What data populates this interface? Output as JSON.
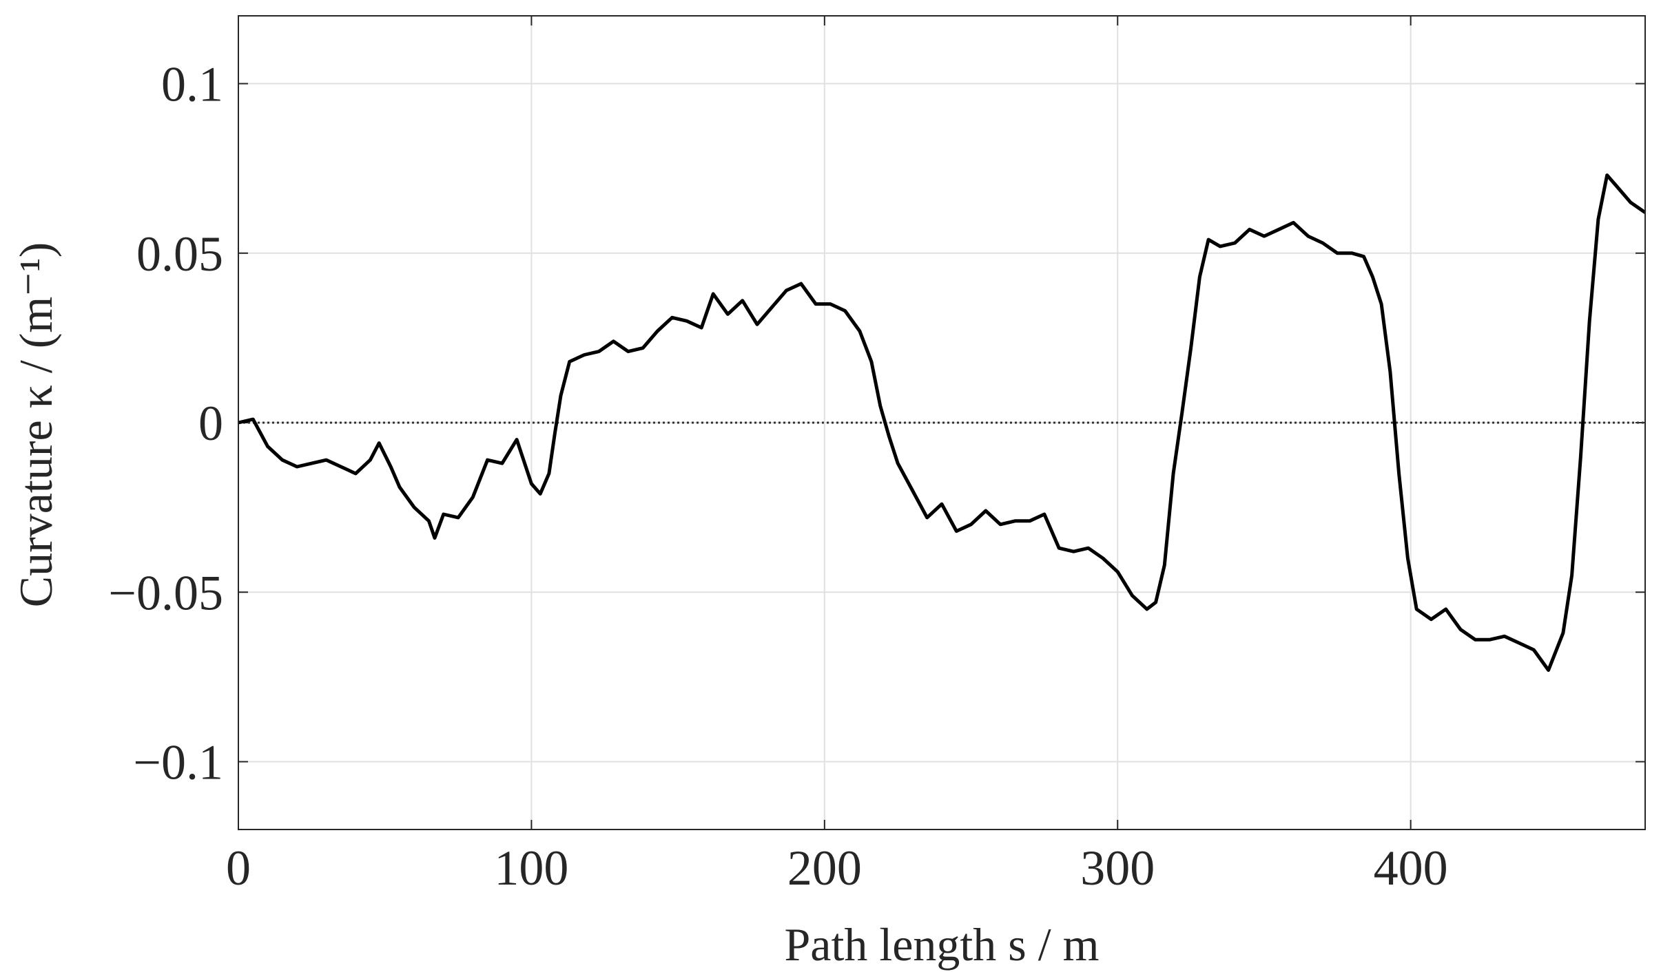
{
  "chart_data": {
    "type": "line",
    "xlabel": "Path length s / m",
    "ylabel": "Curvature κ / (m⁻¹)",
    "x": [
      0,
      5,
      10,
      15,
      20,
      25,
      30,
      35,
      40,
      45,
      48,
      52,
      55,
      60,
      65,
      67,
      70,
      75,
      80,
      85,
      90,
      95,
      100,
      103,
      106,
      108,
      110,
      113,
      118,
      123,
      128,
      133,
      138,
      143,
      148,
      153,
      158,
      162,
      167,
      172,
      177,
      182,
      187,
      192,
      197,
      202,
      207,
      212,
      216,
      219,
      222,
      225,
      230,
      235,
      240,
      245,
      250,
      255,
      260,
      265,
      270,
      275,
      280,
      285,
      290,
      295,
      300,
      305,
      310,
      313,
      316,
      319,
      322,
      325,
      328,
      331,
      335,
      340,
      345,
      350,
      355,
      360,
      365,
      370,
      375,
      380,
      384,
      387,
      390,
      393,
      396,
      399,
      402,
      407,
      412,
      417,
      422,
      427,
      432,
      437,
      442,
      447,
      452,
      455,
      458,
      461,
      464,
      467,
      470,
      475,
      480
    ],
    "series": [
      {
        "name": "Curvature",
        "color": "#000000",
        "values": [
          0,
          0.001,
          -0.007,
          -0.011,
          -0.013,
          -0.012,
          -0.011,
          -0.013,
          -0.015,
          -0.011,
          -0.006,
          -0.013,
          -0.019,
          -0.025,
          -0.029,
          -0.034,
          -0.027,
          -0.028,
          -0.022,
          -0.011,
          -0.012,
          -0.005,
          -0.018,
          -0.021,
          -0.015,
          -0.003,
          0.008,
          0.018,
          0.02,
          0.021,
          0.024,
          0.021,
          0.022,
          0.027,
          0.031,
          0.03,
          0.028,
          0.038,
          0.032,
          0.036,
          0.029,
          0.034,
          0.039,
          0.041,
          0.035,
          0.035,
          0.033,
          0.027,
          0.018,
          0.005,
          -0.004,
          -0.012,
          -0.02,
          -0.028,
          -0.024,
          -0.032,
          -0.03,
          -0.026,
          -0.03,
          -0.029,
          -0.029,
          -0.027,
          -0.037,
          -0.038,
          -0.037,
          -0.04,
          -0.044,
          -0.051,
          -0.055,
          -0.053,
          -0.042,
          -0.015,
          0.003,
          0.022,
          0.043,
          0.054,
          0.052,
          0.053,
          0.057,
          0.055,
          0.057,
          0.059,
          0.055,
          0.053,
          0.05,
          0.05,
          0.049,
          0.043,
          0.035,
          0.015,
          -0.015,
          -0.04,
          -0.055,
          -0.058,
          -0.055,
          -0.061,
          -0.064,
          -0.064,
          -0.063,
          -0.065,
          -0.067,
          -0.073,
          -0.062,
          -0.045,
          -0.01,
          0.03,
          0.06,
          0.073,
          0.07,
          0.065,
          0.062
        ]
      }
    ],
    "xlim": [
      0,
      480
    ],
    "xticks": [
      0,
      100,
      200,
      300,
      400
    ],
    "ylim": [
      -0.12,
      0.12
    ],
    "yticks": [
      {
        "value": -0.1,
        "label": "−0.1"
      },
      {
        "value": -0.05,
        "label": "−0.05"
      },
      0,
      0.05,
      0.1
    ],
    "grid": true,
    "reference_line": {
      "y": 0,
      "style": "dotted"
    }
  }
}
